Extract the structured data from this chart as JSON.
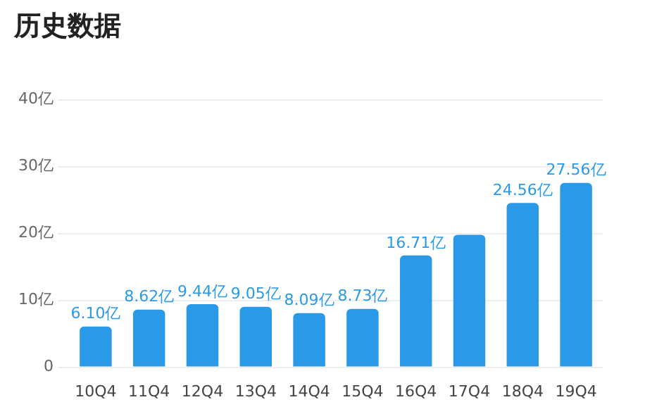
{
  "chart_data": {
    "type": "bar",
    "title": "历史数据",
    "categories": [
      "10Q4",
      "11Q4",
      "12Q4",
      "13Q4",
      "14Q4",
      "15Q4",
      "16Q4",
      "17Q4",
      "18Q4",
      "19Q4"
    ],
    "values": [
      6.1,
      8.62,
      9.44,
      9.05,
      8.09,
      8.73,
      16.71,
      19.8,
      24.56,
      27.56
    ],
    "value_labels": [
      "6.10亿",
      "8.62亿",
      "9.44亿",
      "9.05亿",
      "8.09亿",
      "8.73亿",
      "16.71亿",
      null,
      "24.56亿",
      "27.56亿"
    ],
    "color": "#2a9ae8",
    "ylim": [
      0,
      40
    ],
    "yticks": [
      {
        "value": 0,
        "label": "0"
      },
      {
        "value": 10,
        "label": "10亿"
      },
      {
        "value": 20,
        "label": "20亿"
      },
      {
        "value": 30,
        "label": "30亿"
      },
      {
        "value": 40,
        "label": "40亿"
      }
    ],
    "grid": "y",
    "legend": false
  }
}
